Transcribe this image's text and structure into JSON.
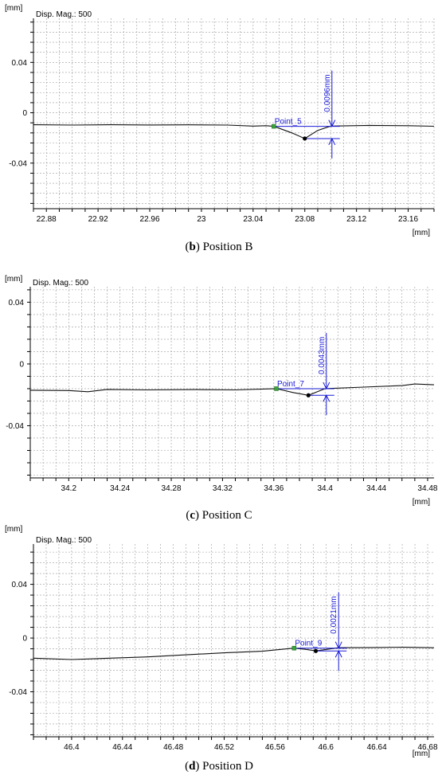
{
  "chart_data": [
    {
      "type": "line",
      "caption": {
        "letter": "b",
        "rest": " Position B"
      },
      "unit_top": "[mm]",
      "unit_bottom": "[mm]",
      "mag_label": "Disp. Mag.: 500",
      "xlim": [
        22.87,
        23.18
      ],
      "ylim": [
        -0.0762,
        0.075
      ],
      "x_ticks": [
        22.88,
        22.92,
        22.96,
        23,
        23.04,
        23.08,
        23.12,
        23.16
      ],
      "x_tick_labels": [
        "22.88",
        "22.92",
        "22.96",
        "23",
        "23.04",
        "23.08",
        "23.12",
        "23.16"
      ],
      "y_ticks": [
        0.04,
        0,
        -0.04
      ],
      "y_tick_labels": [
        "0.04",
        "0",
        "-0.04"
      ],
      "profile": {
        "x": [
          22.87,
          22.9,
          22.93,
          22.96,
          22.99,
          23.02,
          23.04,
          23.05,
          23.056,
          23.07,
          23.08,
          23.09,
          23.1,
          23.13,
          23.16,
          23.18
        ],
        "y": [
          -0.0095,
          -0.0098,
          -0.0095,
          -0.0097,
          -0.0096,
          -0.0098,
          -0.0106,
          -0.0103,
          -0.0108,
          -0.016,
          -0.0205,
          -0.014,
          -0.0106,
          -0.01,
          -0.0103,
          -0.0107
        ]
      },
      "marker_start": {
        "x": 23.056,
        "y": -0.0108
      },
      "marker_end": {
        "x": 23.08,
        "y": -0.0205
      },
      "point_label": "Point_5",
      "dimension": {
        "x": 23.101,
        "label": "0.0096mm"
      }
    },
    {
      "type": "line",
      "caption": {
        "letter": "c",
        "rest": " Position C"
      },
      "unit_top": "[mm]",
      "unit_bottom": "[mm]",
      "mag_label": "Disp. Mag.: 500",
      "xlim": [
        34.17,
        34.485
      ],
      "ylim": [
        -0.0738,
        0.05
      ],
      "x_ticks": [
        34.2,
        34.24,
        34.28,
        34.32,
        34.36,
        34.4,
        34.44,
        34.48
      ],
      "x_tick_labels": [
        "34.2",
        "34.24",
        "34.28",
        "34.32",
        "34.36",
        "34.4",
        "34.44",
        "34.48"
      ],
      "y_ticks": [
        0.04,
        0,
        -0.04
      ],
      "y_tick_labels": [
        "0.04",
        "0",
        "-0.04"
      ],
      "profile": {
        "x": [
          34.17,
          34.2,
          34.215,
          34.23,
          34.26,
          34.3,
          34.33,
          34.362,
          34.375,
          34.387,
          34.4,
          34.43,
          34.46,
          34.47,
          34.485
        ],
        "y": [
          -0.017,
          -0.0172,
          -0.018,
          -0.0165,
          -0.0168,
          -0.0166,
          -0.0168,
          -0.016,
          -0.0185,
          -0.0203,
          -0.016,
          -0.015,
          -0.014,
          -0.013,
          -0.0135
        ]
      },
      "marker_start": {
        "x": 34.362,
        "y": -0.016
      },
      "marker_end": {
        "x": 34.387,
        "y": -0.0203
      },
      "point_label": "Point_7",
      "dimension": {
        "x": 34.401,
        "label": "0.0043mm"
      }
    },
    {
      "type": "line",
      "caption": {
        "letter": "d",
        "rest": " Position D"
      },
      "unit_top": "[mm]",
      "unit_bottom": "[mm]",
      "mag_label": "Disp. Mag.: 500",
      "xlim": [
        46.37,
        46.685
      ],
      "ylim": [
        -0.0735,
        0.07
      ],
      "x_ticks": [
        46.4,
        46.44,
        46.48,
        46.52,
        46.56,
        46.6,
        46.64,
        46.68
      ],
      "x_tick_labels": [
        "46.4",
        "46.44",
        "46.48",
        "46.52",
        "46.56",
        "46.6",
        "46.64",
        "46.68"
      ],
      "y_ticks": [
        0.04,
        0,
        -0.04
      ],
      "y_tick_labels": [
        "0.04",
        "0",
        "-0.04"
      ],
      "profile": {
        "x": [
          46.37,
          46.4,
          46.43,
          46.46,
          46.49,
          46.52,
          46.55,
          46.575,
          46.585,
          46.592,
          46.61,
          46.64,
          46.66,
          46.685
        ],
        "y": [
          -0.015,
          -0.016,
          -0.015,
          -0.014,
          -0.0125,
          -0.011,
          -0.0098,
          -0.0075,
          -0.0085,
          -0.0096,
          -0.0072,
          -0.007,
          -0.0068,
          -0.0072
        ]
      },
      "marker_start": {
        "x": 46.575,
        "y": -0.0075
      },
      "marker_end": {
        "x": 46.592,
        "y": -0.0096
      },
      "point_label": "Point_9",
      "dimension": {
        "x": 46.61,
        "label": "0.0021mm"
      }
    }
  ]
}
